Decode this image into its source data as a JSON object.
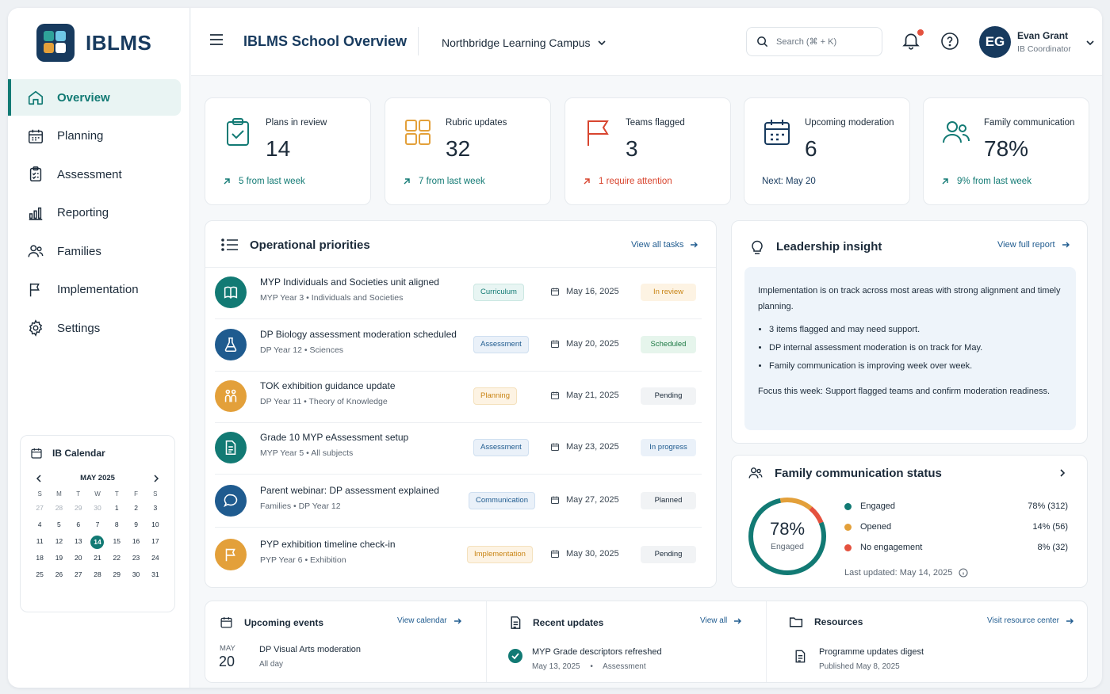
{
  "app": {
    "logo_text": "IBLMS",
    "title": "IBLMS School Overview",
    "campus": "Northbridge Learning Campus"
  },
  "search": {
    "placeholder": "Search (⌘ + K)"
  },
  "user": {
    "initials": "EG",
    "name": "Evan Grant",
    "role": "IB Coordinator"
  },
  "nav": [
    {
      "label": "Overview",
      "icon": "home-icon"
    },
    {
      "label": "Planning",
      "icon": "calendar-icon"
    },
    {
      "label": "Assessment",
      "icon": "clipboard-icon"
    },
    {
      "label": "Reporting",
      "icon": "bar-chart-icon"
    },
    {
      "label": "Families",
      "icon": "people-icon"
    },
    {
      "label": "Implementation",
      "icon": "flag-icon"
    },
    {
      "label": "Settings",
      "icon": "gear-icon"
    }
  ],
  "calendar": {
    "title": "IB Calendar",
    "month": "MAY 2025",
    "weekdays": [
      "S",
      "M",
      "T",
      "W",
      "T",
      "F",
      "S"
    ],
    "days": [
      "27",
      "28",
      "29",
      "30",
      "1",
      "2",
      "3",
      "4",
      "5",
      "6",
      "7",
      "8",
      "9",
      "10",
      "11",
      "12",
      "13",
      "14",
      "15",
      "16",
      "17",
      "18",
      "19",
      "20",
      "21",
      "22",
      "23",
      "24",
      "25",
      "26",
      "27",
      "28",
      "29",
      "30",
      "31"
    ],
    "today": "14"
  },
  "kpis": [
    {
      "label": "Plans in review",
      "value": "14",
      "foot": "5 from last week",
      "color": "#127a74"
    },
    {
      "label": "Rubric updates",
      "value": "32",
      "foot": "7 from last week",
      "color": "#e3a03a"
    },
    {
      "label": "Teams flagged",
      "value": "3",
      "foot": "1 require attention",
      "color": "#d8452f"
    },
    {
      "label": "Upcoming moderation",
      "value": "6",
      "foot": "Next: May 20",
      "color": "#173a5e"
    },
    {
      "label": "Family communication",
      "value": "78%",
      "foot": "9% from last week",
      "color": "#127a74"
    }
  ],
  "priorities": {
    "title": "Operational priorities",
    "link": "View all tasks",
    "tasks": [
      {
        "title": "MYP Individuals and Societies unit aligned",
        "meta": "MYP Year 3  •  Individuals and Societies",
        "tag": "Curriculum",
        "date": "May 16, 2025",
        "status": "In review",
        "icon_color": "#127a74",
        "icon": "book-icon"
      },
      {
        "title": "DP Biology assessment moderation scheduled",
        "meta": "DP Year 12  •  Sciences",
        "tag": "Assessment",
        "date": "May 20, 2025",
        "status": "Scheduled",
        "icon_color": "#1f5b8f",
        "icon": "flask-icon"
      },
      {
        "title": "TOK exhibition guidance update",
        "meta": "DP Year 11  •  Theory of Knowledge",
        "tag": "Planning",
        "date": "May 21, 2025",
        "status": "Pending",
        "icon_color": "#e3a03a",
        "icon": "people-icon"
      },
      {
        "title": "Grade 10 MYP eAssessment setup",
        "meta": "MYP Year 5  •  All subjects",
        "tag": "Assessment",
        "date": "May 23, 2025",
        "status": "In progress",
        "icon_color": "#127a74",
        "icon": "document-icon"
      },
      {
        "title": "Parent webinar: DP assessment explained",
        "meta": "Families  •  DP Year 12",
        "tag": "Communication",
        "date": "May 27, 2025",
        "status": "Planned",
        "icon_color": "#1f5b8f",
        "icon": "chat-icon"
      },
      {
        "title": "PYP exhibition timeline check-in",
        "meta": "PYP Year 6  •  Exhibition",
        "tag": "Implementation",
        "date": "May 30, 2025",
        "status": "Pending",
        "icon_color": "#e3a03a",
        "icon": "flag-icon"
      }
    ]
  },
  "insight": {
    "title": "Leadership insight",
    "link": "View full report",
    "intro": "Implementation is on track across most areas with strong alignment and timely planning.",
    "bullets": [
      "3 items flagged and may need support.",
      "DP internal assessment moderation is on track for May.",
      "Family communication is improving week over week."
    ],
    "focus": "Focus this week: Support flagged teams and confirm moderation readiness."
  },
  "family": {
    "title": "Family communication status",
    "center_value": "78%",
    "center_label": "Engaged",
    "rows": [
      {
        "label": "Engaged",
        "value": "78% (312)",
        "color": "#127a74",
        "fraction": 0.78
      },
      {
        "label": "Opened",
        "value": "14% (56)",
        "color": "#e3a03a",
        "fraction": 0.14
      },
      {
        "label": "No engagement",
        "value": "8% (32)",
        "color": "#e4513e",
        "fraction": 0.08
      }
    ],
    "updated": "Last updated: May 14, 2025"
  },
  "events": {
    "title": "Upcoming events",
    "link": "View calendar",
    "month": "MAY",
    "day": "20",
    "name": "DP Visual Arts moderation",
    "time": "All day"
  },
  "updates": {
    "title": "Recent updates",
    "link": "View all",
    "name": "MYP Grade descriptors refreshed",
    "date": "May 13, 2025",
    "sep": "•",
    "category": "Assessment"
  },
  "resources": {
    "title": "Resources",
    "link": "Visit resource center",
    "name": "Programme updates digest",
    "date": "Published May 8, 2025"
  }
}
